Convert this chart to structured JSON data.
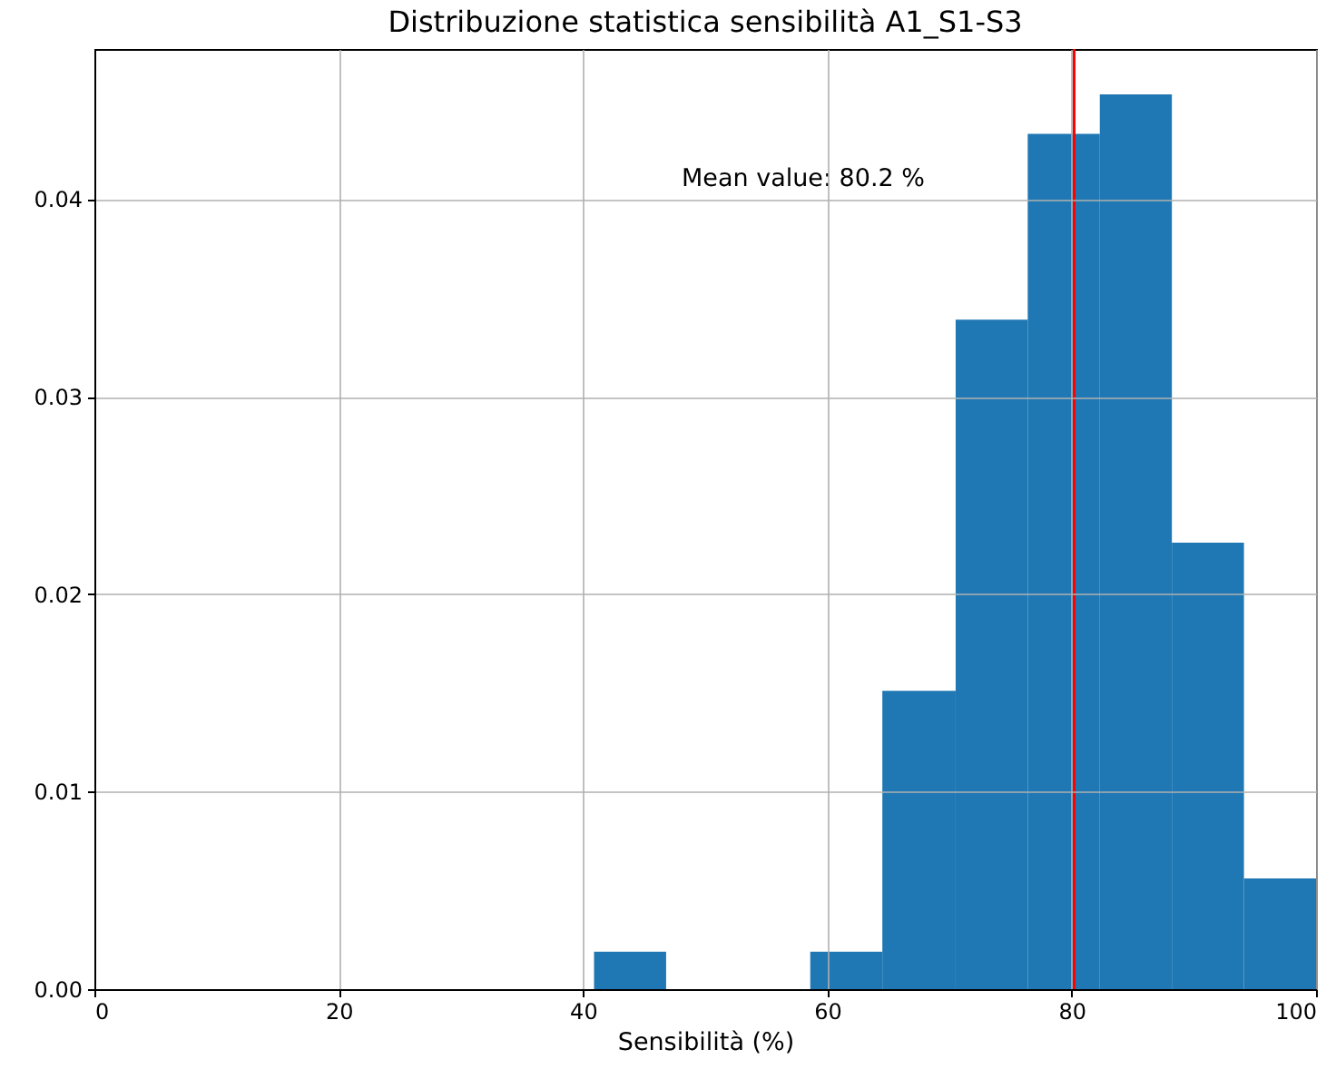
{
  "chart_data": {
    "type": "histogram",
    "title": "Distribuzione statistica sensibilità A1_S1-S3",
    "xlabel": "Sensibilità (%)",
    "bins": [
      40.9,
      46.8,
      58.6,
      64.5,
      70.5,
      76.4,
      82.3,
      88.2,
      94.1,
      100
    ],
    "values": [
      0.0019,
      0,
      0.0019,
      0.0151,
      0.0339,
      0.0433,
      0.0453,
      0.0226,
      0.0056
    ],
    "color": "#1f77b4",
    "xlim": [
      0,
      100
    ],
    "xticks": [
      0,
      20,
      40,
      60,
      80,
      100
    ],
    "ylim": [
      0,
      0.0476
    ],
    "yticks": [
      {
        "value": 0,
        "label": "0.00"
      },
      {
        "value": 0.01,
        "label": "0.01"
      },
      {
        "value": 0.02,
        "label": "0.02"
      },
      {
        "value": 0.03,
        "label": "0.03"
      },
      {
        "value": 0.04,
        "label": "0.04"
      }
    ],
    "grid": true,
    "ref_lines": [
      {
        "axis": "x",
        "value": 80.2,
        "color": "#ff0000"
      }
    ],
    "annotations": [
      "Mean value: 80.2 %"
    ]
  }
}
